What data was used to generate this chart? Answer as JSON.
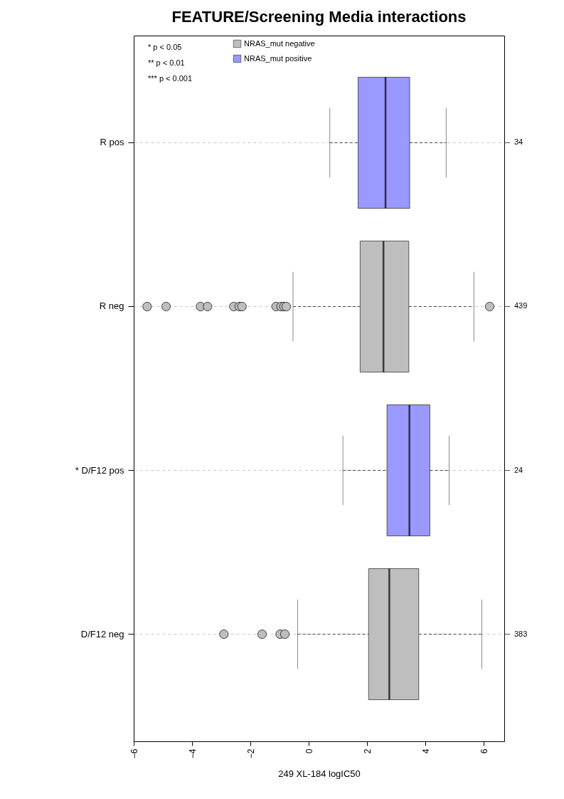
{
  "chart_data": {
    "type": "box",
    "title": "FEATURE/Screening Media interactions",
    "xlabel": "249 XL-184 logIC50",
    "orientation": "horizontal",
    "categories": [
      "R pos",
      "R neg",
      "* D/F12 pos",
      "D/F12 neg"
    ],
    "y2_categories": [
      "34",
      "439",
      "24",
      "383"
    ],
    "series": [
      {
        "name": "NRAS_mut negative",
        "color": "#bebebe",
        "boxes": [
          null,
          {
            "low": -0.54,
            "q1": 1.76,
            "median": 2.56,
            "q3": 3.43,
            "high": 5.66,
            "outliers": [
              -5.54,
              -4.89,
              -3.71,
              -3.47,
              -2.57,
              -2.38,
              -2.29,
              -1.12,
              -0.95,
              -0.85,
              -0.77,
              6.2
            ]
          },
          null,
          {
            "low": -0.38,
            "q1": 2.05,
            "median": 2.76,
            "q3": 3.77,
            "high": 5.93,
            "outliers": [
              -2.91,
              -1.6,
              -0.98,
              -0.82
            ]
          }
        ]
      },
      {
        "name": "NRAS_mut positive",
        "color": "#9999ff",
        "boxes": [
          {
            "low": 0.72,
            "q1": 1.69,
            "median": 2.63,
            "q3": 3.46,
            "high": 4.71
          },
          null,
          {
            "low": 1.17,
            "q1": 2.68,
            "median": 3.45,
            "q3": 4.15,
            "high": 4.81
          },
          null
        ]
      }
    ],
    "xlim": [
      -6,
      6.7
    ],
    "xticks": [
      -6,
      -4,
      -2,
      0,
      2,
      4,
      6
    ],
    "grid": "y",
    "legend": "top left",
    "annotations": [
      "* p < 0.05",
      "** p < 0.01",
      "*** p < 0.001"
    ]
  }
}
